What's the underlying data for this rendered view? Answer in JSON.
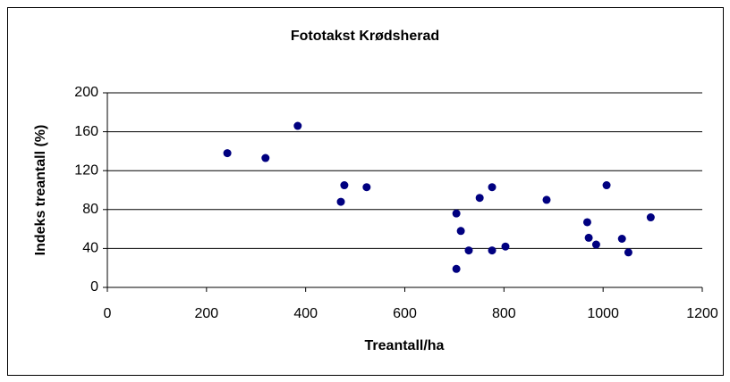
{
  "chart_data": {
    "type": "scatter",
    "title": "Fototakst Krødsherad",
    "x_label": "Treantall/ha",
    "y_label": "Indeks treantall (%)",
    "series": [
      {
        "color": "#000080",
        "x": [
          242,
          319,
          384,
          471,
          478,
          523,
          704,
          704,
          713,
          729,
          751,
          776,
          776,
          803,
          886,
          968,
          971,
          986,
          1007,
          1038,
          1051,
          1096
        ],
        "values": [
          138,
          133,
          166,
          88,
          105,
          103,
          19,
          76,
          58,
          38,
          92,
          103,
          38,
          42,
          90,
          67,
          51,
          44,
          105,
          50,
          36,
          72
        ]
      }
    ],
    "xlim": [
      0,
      1200
    ],
    "xticks": [
      0,
      200,
      400,
      600,
      800,
      1000,
      1200
    ],
    "ylim": [
      0,
      200
    ],
    "yticks": [
      0,
      40,
      80,
      120,
      160,
      200
    ],
    "grid": true
  }
}
